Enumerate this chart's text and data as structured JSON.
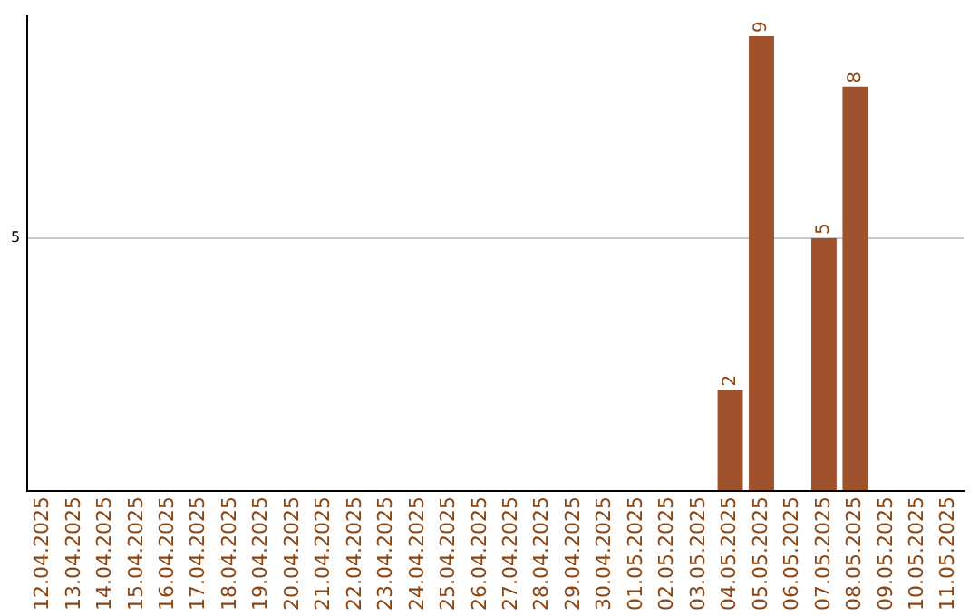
{
  "chart_data": {
    "type": "bar",
    "categories": [
      "12.04.2025",
      "13.04.2025",
      "14.04.2025",
      "15.04.2025",
      "16.04.2025",
      "17.04.2025",
      "18.04.2025",
      "19.04.2025",
      "20.04.2025",
      "21.04.2025",
      "22.04.2025",
      "23.04.2025",
      "24.04.2025",
      "25.04.2025",
      "26.04.2025",
      "27.04.2025",
      "28.04.2025",
      "29.04.2025",
      "30.04.2025",
      "01.05.2025",
      "02.05.2025",
      "03.05.2025",
      "04.05.2025",
      "05.05.2025",
      "06.05.2025",
      "07.05.2025",
      "08.05.2025",
      "09.05.2025",
      "10.05.2025",
      "11.05.2025"
    ],
    "values": [
      null,
      null,
      null,
      null,
      null,
      null,
      null,
      null,
      null,
      null,
      null,
      null,
      null,
      null,
      null,
      null,
      null,
      null,
      null,
      null,
      null,
      null,
      2,
      9,
      null,
      5,
      8,
      null,
      null,
      null
    ],
    "color": "#a0522d",
    "ylim": [
      0,
      9.4
    ],
    "yticks": [
      {
        "value": 0,
        "label": null
      },
      5
    ],
    "grid": "y",
    "data_labels": true
  }
}
